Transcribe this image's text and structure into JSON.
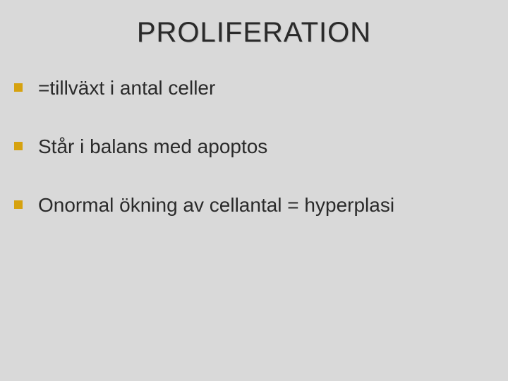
{
  "slide": {
    "title": "PROLIFERATION",
    "bullets": [
      "=tillväxt i antal celler",
      "Står i balans med apoptos",
      "Onormal ökning av cellantal = hyperplasi"
    ]
  },
  "style": {
    "background_color": "#d9d9d9",
    "title_fontsize": 40,
    "title_color": "#2a2a2a",
    "body_fontsize": 28,
    "body_color": "#2a2a2a",
    "bullet_marker_color": "#d6a20f",
    "bullet_marker_shape": "square",
    "font_family": "Arial"
  }
}
